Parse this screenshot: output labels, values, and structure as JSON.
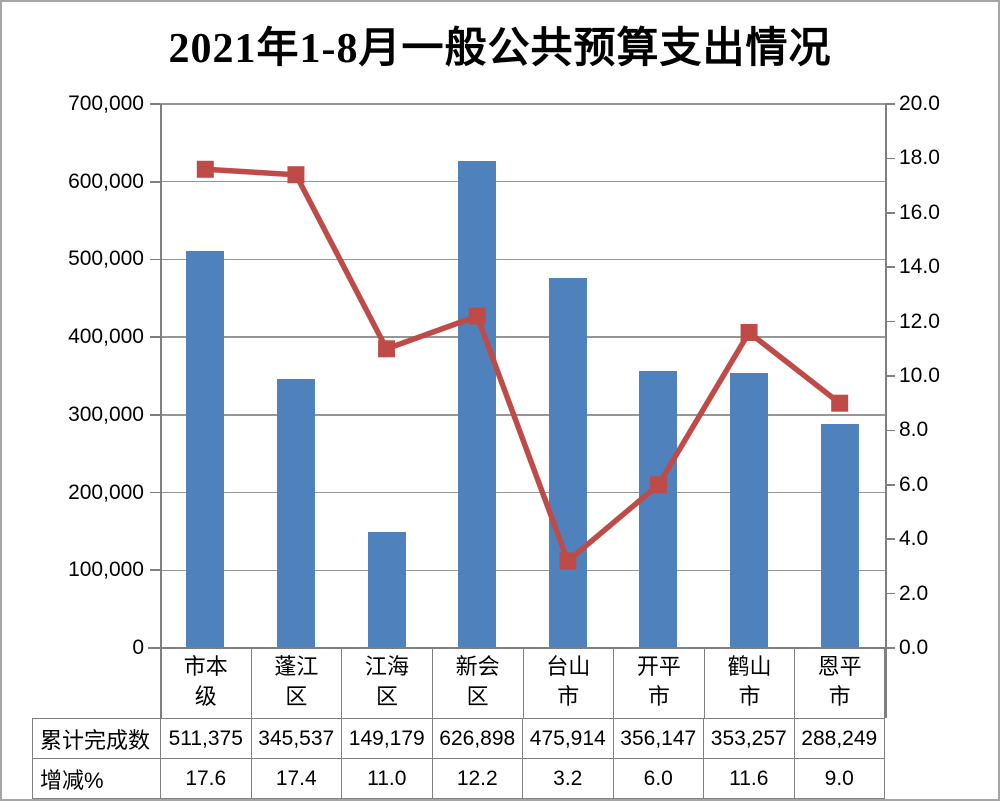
{
  "title": "2021年1-8月一般公共预算支出情况",
  "chart_data": {
    "type": "bar+line combo",
    "title": "2021年1-8月一般公共预算支出情况",
    "categories": [
      "市本级",
      "蓬江区",
      "江海区",
      "新会区",
      "台山市",
      "开平市",
      "鹤山市",
      "恩平市"
    ],
    "categories_2line": [
      [
        "市本",
        "级"
      ],
      [
        "蓬江",
        "区"
      ],
      [
        "江海",
        "区"
      ],
      [
        "新会",
        "区"
      ],
      [
        "台山",
        "市"
      ],
      [
        "开平",
        "市"
      ],
      [
        "鹤山",
        "市"
      ],
      [
        "恩平",
        "市"
      ]
    ],
    "series": [
      {
        "name": "累计完成数",
        "type": "bar",
        "axis": "left",
        "color": "#4f81bd",
        "values": [
          511375,
          345537,
          149179,
          626898,
          475914,
          356147,
          353257,
          288249
        ]
      },
      {
        "name": "增减%",
        "type": "line",
        "axis": "right",
        "color": "#be4b48",
        "marker": "square",
        "values": [
          17.6,
          17.4,
          11.0,
          12.2,
          3.2,
          6.0,
          11.6,
          9.0
        ]
      }
    ],
    "left_axis": {
      "min": 0,
      "max": 700000,
      "step": 100000,
      "tick_labels": [
        "0",
        "100,000",
        "200,000",
        "300,000",
        "400,000",
        "500,000",
        "600,000",
        "700,000"
      ]
    },
    "right_axis": {
      "min": 0,
      "max": 20,
      "step": 2,
      "tick_labels": [
        "0.0",
        "2.0",
        "4.0",
        "6.0",
        "8.0",
        "10.0",
        "12.0",
        "14.0",
        "16.0",
        "18.0",
        "20.0"
      ]
    },
    "grid": true,
    "legend": "none"
  },
  "table": {
    "rows": [
      {
        "label": "累计完成数",
        "values": [
          "511,375",
          "345,537",
          "149,179",
          "626,898",
          "475,914",
          "356,147",
          "353,257",
          "288,249"
        ]
      },
      {
        "label": "增减%",
        "values": [
          "17.6",
          "17.4",
          "11.0",
          "12.2",
          "3.2",
          "6.0",
          "11.6",
          "9.0"
        ]
      }
    ]
  },
  "colors": {
    "bar": "#4f81bd",
    "line": "#be4b48",
    "gridline": "#969696",
    "axis": "#7f7f7f",
    "table_border": "#7f7f7f",
    "background": "#ffffff",
    "text": "#000000"
  }
}
